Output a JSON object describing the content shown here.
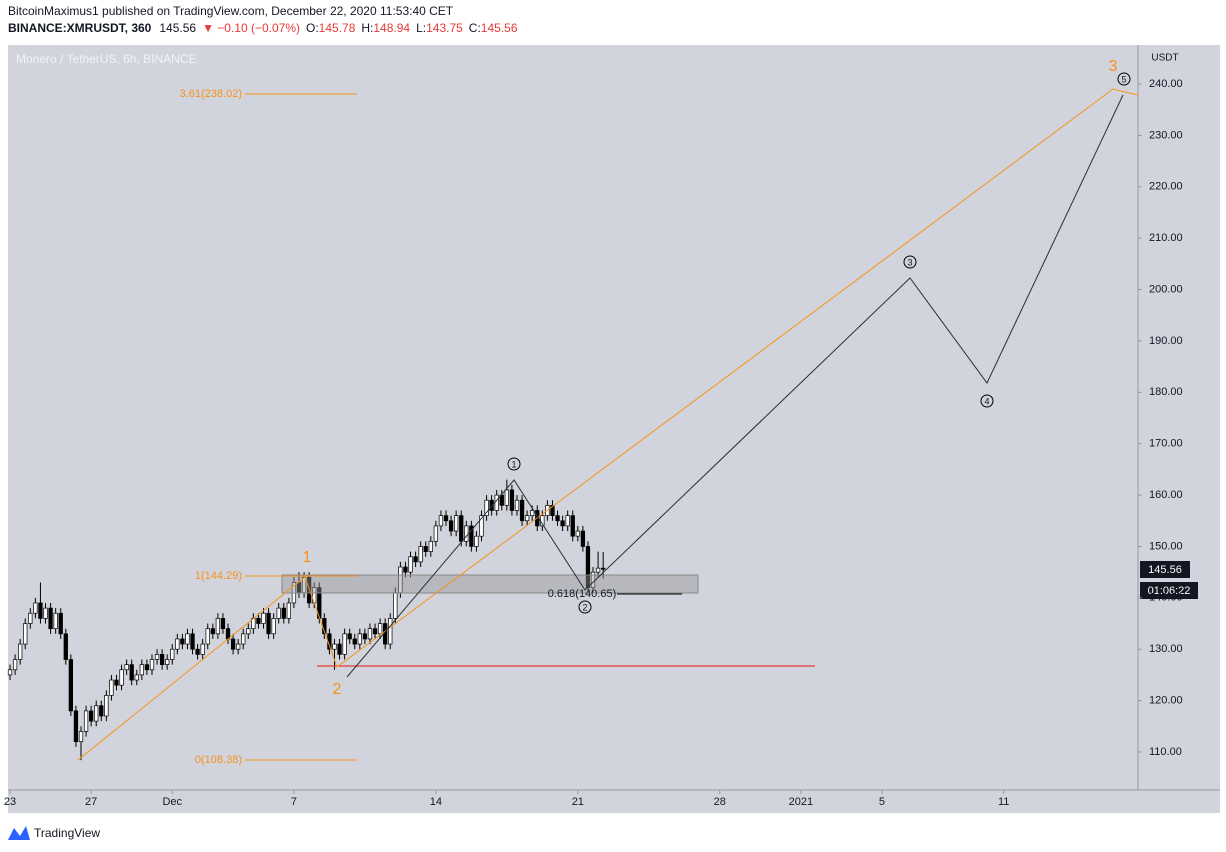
{
  "header": {
    "published": "BitcoinMaximus1 published on TradingView.com, December 22, 2020 11:53:40 CET",
    "symbol": "BINANCE:XMRUSDT, 360",
    "last": "145.56",
    "change": "▼ −0.10 (−0.07%)",
    "ohlc": [
      {
        "key": "O:",
        "value": "145.78"
      },
      {
        "key": "H:",
        "value": "148.94"
      },
      {
        "key": "L:",
        "value": "143.75"
      },
      {
        "key": "C:",
        "value": "145.56"
      }
    ]
  },
  "footer": "TradingView",
  "chart_data": {
    "type": "candlestick",
    "title": "Monero / TetherUS, 6h, BINANCE",
    "y_unit": "USDT",
    "price_tag": "145.56",
    "countdown": "01:06:22",
    "up_color": "#ffffff",
    "down_color": "#000000",
    "annotations": [
      "3.61(238.02)",
      "1(144.29)",
      "0(108.38)",
      "0.618(140.65)"
    ],
    "wave_labels": [
      "1",
      "2",
      "3"
    ],
    "sub_wave_labels": [
      "1",
      "2",
      "3",
      "4",
      "5"
    ],
    "xlim": [
      -0.4,
      222.5
    ],
    "xticks": [
      {
        "value": 0,
        "label": "23"
      },
      {
        "value": 16,
        "label": "27"
      },
      {
        "value": 32,
        "label": "Dec"
      },
      {
        "value": 56,
        "label": "7"
      },
      {
        "value": 84,
        "label": "14"
      },
      {
        "value": 112,
        "label": "21"
      },
      {
        "value": 140,
        "label": "28"
      },
      {
        "value": 156,
        "label": "2021"
      },
      {
        "value": 172,
        "label": "5"
      },
      {
        "value": 196,
        "label": "11"
      }
    ],
    "ylim": [
      102.6,
      247.6
    ],
    "yticks": [
      {
        "value": 110,
        "label": "110.00"
      },
      {
        "value": 120,
        "label": "120.00"
      },
      {
        "value": 130,
        "label": "130.00"
      },
      {
        "value": 140,
        "label": "140.00"
      },
      {
        "value": 150,
        "label": "150.00"
      },
      {
        "value": 160,
        "label": "160.00"
      },
      {
        "value": 170,
        "label": "170.00"
      },
      {
        "value": 180,
        "label": "180.00"
      },
      {
        "value": 190,
        "label": "190.00"
      },
      {
        "value": 200,
        "label": "200.00"
      },
      {
        "value": 210,
        "label": "210.00"
      },
      {
        "value": 220,
        "label": "220.00"
      },
      {
        "value": 230,
        "label": "230.00"
      },
      {
        "value": 240,
        "label": "240.00"
      }
    ],
    "open": [
      125,
      126,
      128,
      131,
      135,
      137,
      139,
      136,
      138,
      134,
      137,
      133,
      128,
      118,
      112,
      114,
      118,
      116,
      119,
      117,
      121,
      124,
      123,
      126,
      127,
      124,
      125,
      127,
      126,
      128,
      129,
      127,
      128,
      130,
      132,
      131,
      133,
      130,
      129,
      131,
      134,
      133,
      136,
      134,
      132,
      130,
      131,
      133,
      134,
      136,
      135,
      137,
      133,
      136,
      138,
      136,
      139,
      143,
      141,
      144,
      139,
      142,
      136,
      133,
      130,
      131,
      129,
      133,
      132,
      131,
      133,
      132,
      134,
      133,
      135,
      131,
      136,
      141,
      146,
      145,
      148,
      147,
      150,
      149,
      151,
      154,
      156,
      155,
      153,
      156,
      151,
      154,
      150,
      152,
      156,
      159,
      157,
      160,
      158,
      161,
      157,
      159,
      155,
      156,
      157,
      154,
      156,
      158,
      156,
      155,
      154,
      156,
      152,
      153,
      150,
      142,
      145,
      145.78
    ],
    "high": [
      127,
      129,
      132,
      136,
      138,
      140,
      143,
      139,
      139,
      138,
      138,
      134,
      129,
      119,
      115,
      119,
      119,
      120,
      120,
      122,
      125,
      125,
      127,
      128,
      128,
      126,
      128,
      128,
      129,
      130,
      130,
      129,
      131,
      133,
      133,
      134,
      134,
      131,
      132,
      135,
      135,
      137,
      137,
      135,
      133,
      132,
      134,
      135,
      137,
      137,
      138,
      138,
      137,
      139,
      139,
      140,
      144,
      145,
      145,
      145,
      143,
      143,
      137,
      134,
      132,
      132,
      134,
      134,
      133,
      134,
      134,
      135,
      135,
      136,
      136,
      137,
      142,
      147,
      147,
      149,
      149,
      151,
      151,
      152,
      155,
      157,
      157,
      156,
      157,
      157,
      155,
      155,
      153,
      157,
      160,
      160,
      161,
      161,
      163,
      162,
      160,
      160,
      157,
      158,
      158,
      157,
      159,
      159,
      157,
      156,
      157,
      157,
      154,
      154,
      151,
      146,
      149,
      148.94
    ],
    "low": [
      124,
      125,
      127,
      130,
      134,
      136,
      135,
      135,
      133,
      133,
      132,
      127,
      117,
      111,
      108.4,
      113,
      115,
      115,
      116,
      116,
      120,
      122,
      122,
      125,
      123,
      123,
      124,
      125,
      125,
      127,
      126,
      126,
      127,
      129,
      130,
      130,
      129,
      128,
      128,
      130,
      132,
      132,
      133,
      131,
      129,
      129,
      130,
      132,
      133,
      134,
      134,
      132,
      132,
      135,
      135,
      135,
      138,
      140,
      140,
      138,
      138,
      135,
      132,
      129,
      126,
      128,
      128,
      131,
      130,
      130,
      131,
      131,
      132,
      132,
      130,
      130,
      135,
      140,
      144,
      144,
      146,
      146,
      148,
      148,
      150,
      153,
      154,
      152,
      152,
      150,
      150,
      149,
      149,
      151,
      155,
      156,
      156,
      157,
      157,
      156,
      156,
      154,
      154,
      155,
      153,
      153,
      155,
      155,
      154,
      153,
      153,
      151,
      151,
      149,
      141,
      141,
      144,
      143.75
    ],
    "close": [
      126,
      128,
      131,
      135,
      137,
      139,
      136,
      138,
      134,
      137,
      133,
      128,
      118,
      112,
      114,
      118,
      116,
      119,
      117,
      121,
      124,
      123,
      126,
      127,
      124,
      125,
      127,
      126,
      128,
      129,
      127,
      128,
      130,
      132,
      131,
      133,
      130,
      129,
      131,
      134,
      133,
      136,
      134,
      132,
      130,
      131,
      133,
      134,
      136,
      135,
      137,
      133,
      136,
      138,
      136,
      139,
      143,
      141,
      144,
      139,
      142,
      136,
      133,
      130,
      131,
      129,
      133,
      132,
      131,
      133,
      132,
      134,
      133,
      135,
      131,
      136,
      141,
      146,
      145,
      148,
      147,
      150,
      149,
      151,
      154,
      156,
      155,
      153,
      156,
      151,
      154,
      150,
      152,
      156,
      159,
      157,
      160,
      158,
      161,
      157,
      159,
      155,
      156,
      157,
      154,
      156,
      158,
      156,
      155,
      154,
      156,
      152,
      153,
      150,
      142,
      145,
      145.78,
      145.56
    ]
  }
}
